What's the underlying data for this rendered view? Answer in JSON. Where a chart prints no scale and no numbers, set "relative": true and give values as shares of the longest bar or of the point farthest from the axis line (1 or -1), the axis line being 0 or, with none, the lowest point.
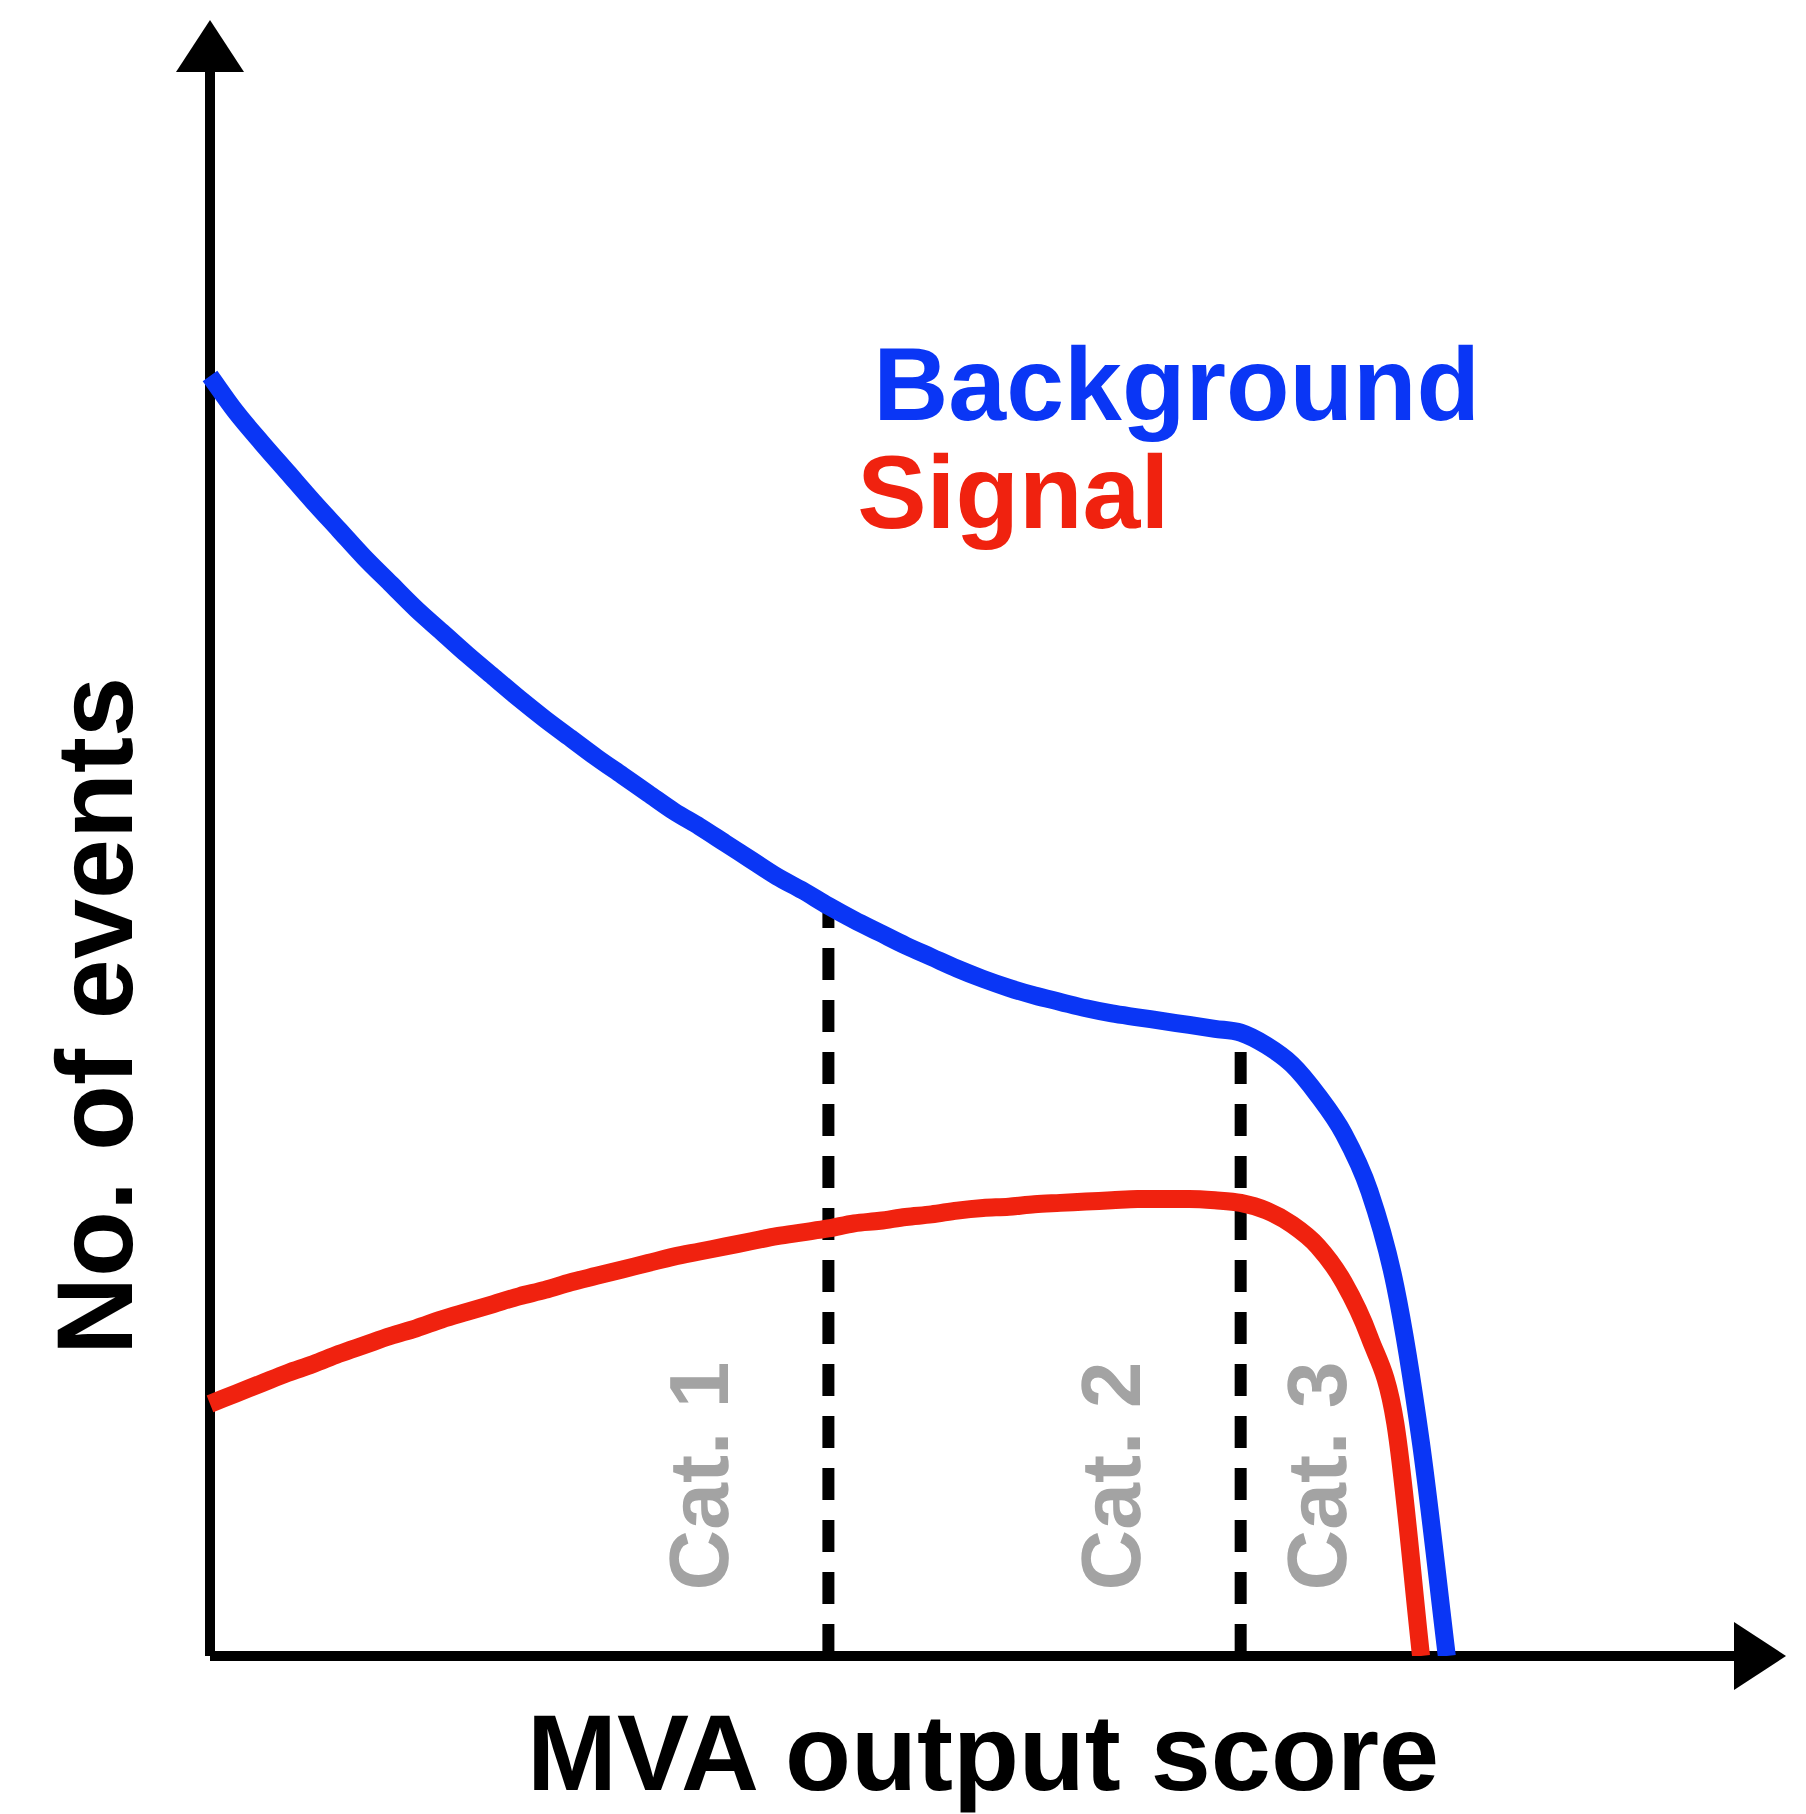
{
  "chart_data": {
    "type": "line",
    "relative": true,
    "xlabel": "MVA output score",
    "ylabel": "No. of events",
    "categories": [
      null,
      null,
      null,
      null,
      null,
      null,
      null,
      null,
      null,
      null,
      null,
      null,
      null,
      null,
      null,
      null,
      null,
      null,
      null,
      null,
      null,
      null,
      null,
      null,
      null,
      null,
      null,
      null,
      null,
      null,
      null,
      null,
      null,
      null,
      null,
      null,
      null,
      null,
      null,
      null,
      null,
      null,
      null,
      null,
      null,
      null,
      null,
      null,
      null,
      null,
      null,
      null,
      null,
      null,
      null,
      null,
      null,
      null,
      null,
      null,
      null
    ],
    "series": [
      {
        "name": "Background",
        "color": "#0a36f5",
        "values": [
          1,
          0.972,
          0.948,
          0.925,
          0.902,
          0.88,
          0.858,
          0.838,
          0.818,
          0.8,
          0.782,
          0.765,
          0.748,
          0.732,
          0.717,
          0.702,
          0.688,
          0.674,
          0.66,
          0.648,
          0.635,
          0.622,
          0.609,
          0.598,
          0.586,
          0.575,
          0.565,
          0.555,
          0.546,
          0.537,
          0.529,
          0.522,
          0.516,
          0.511,
          0.506,
          0.502,
          0.499,
          0.496,
          0.493,
          0.49,
          0.487,
          0.477,
          0.462,
          0.438,
          0.408,
          0.363,
          0.289,
          0.166,
          0,
          null,
          null,
          null,
          null,
          null,
          null,
          null,
          null,
          null,
          null,
          null,
          null
        ]
      },
      {
        "name": "Signal",
        "color": "#f0220f",
        "values": [
          0.197,
          0.205,
          0.213,
          0.221,
          0.228,
          0.236,
          0.243,
          0.25,
          0.256,
          0.263,
          0.269,
          0.275,
          0.281,
          0.286,
          0.292,
          0.297,
          0.302,
          0.307,
          0.312,
          0.316,
          0.32,
          0.324,
          0.328,
          0.331,
          0.334,
          0.338,
          0.34,
          0.343,
          0.345,
          0.348,
          0.35,
          0.351,
          0.353,
          0.354,
          0.355,
          0.356,
          0.357,
          0.357,
          0.357,
          0.356,
          0.354,
          0.348,
          0.337,
          0.32,
          0.292,
          0.249,
          0.182,
          0,
          null,
          null,
          null,
          null,
          null,
          null,
          null,
          null,
          null,
          null,
          null,
          null,
          null
        ]
      }
    ],
    "annotations": [
      "Cat. 1",
      "Cat. 2",
      "Cat. 3"
    ],
    "legend": "top right",
    "marker": "none",
    "line_style": "solid"
  }
}
